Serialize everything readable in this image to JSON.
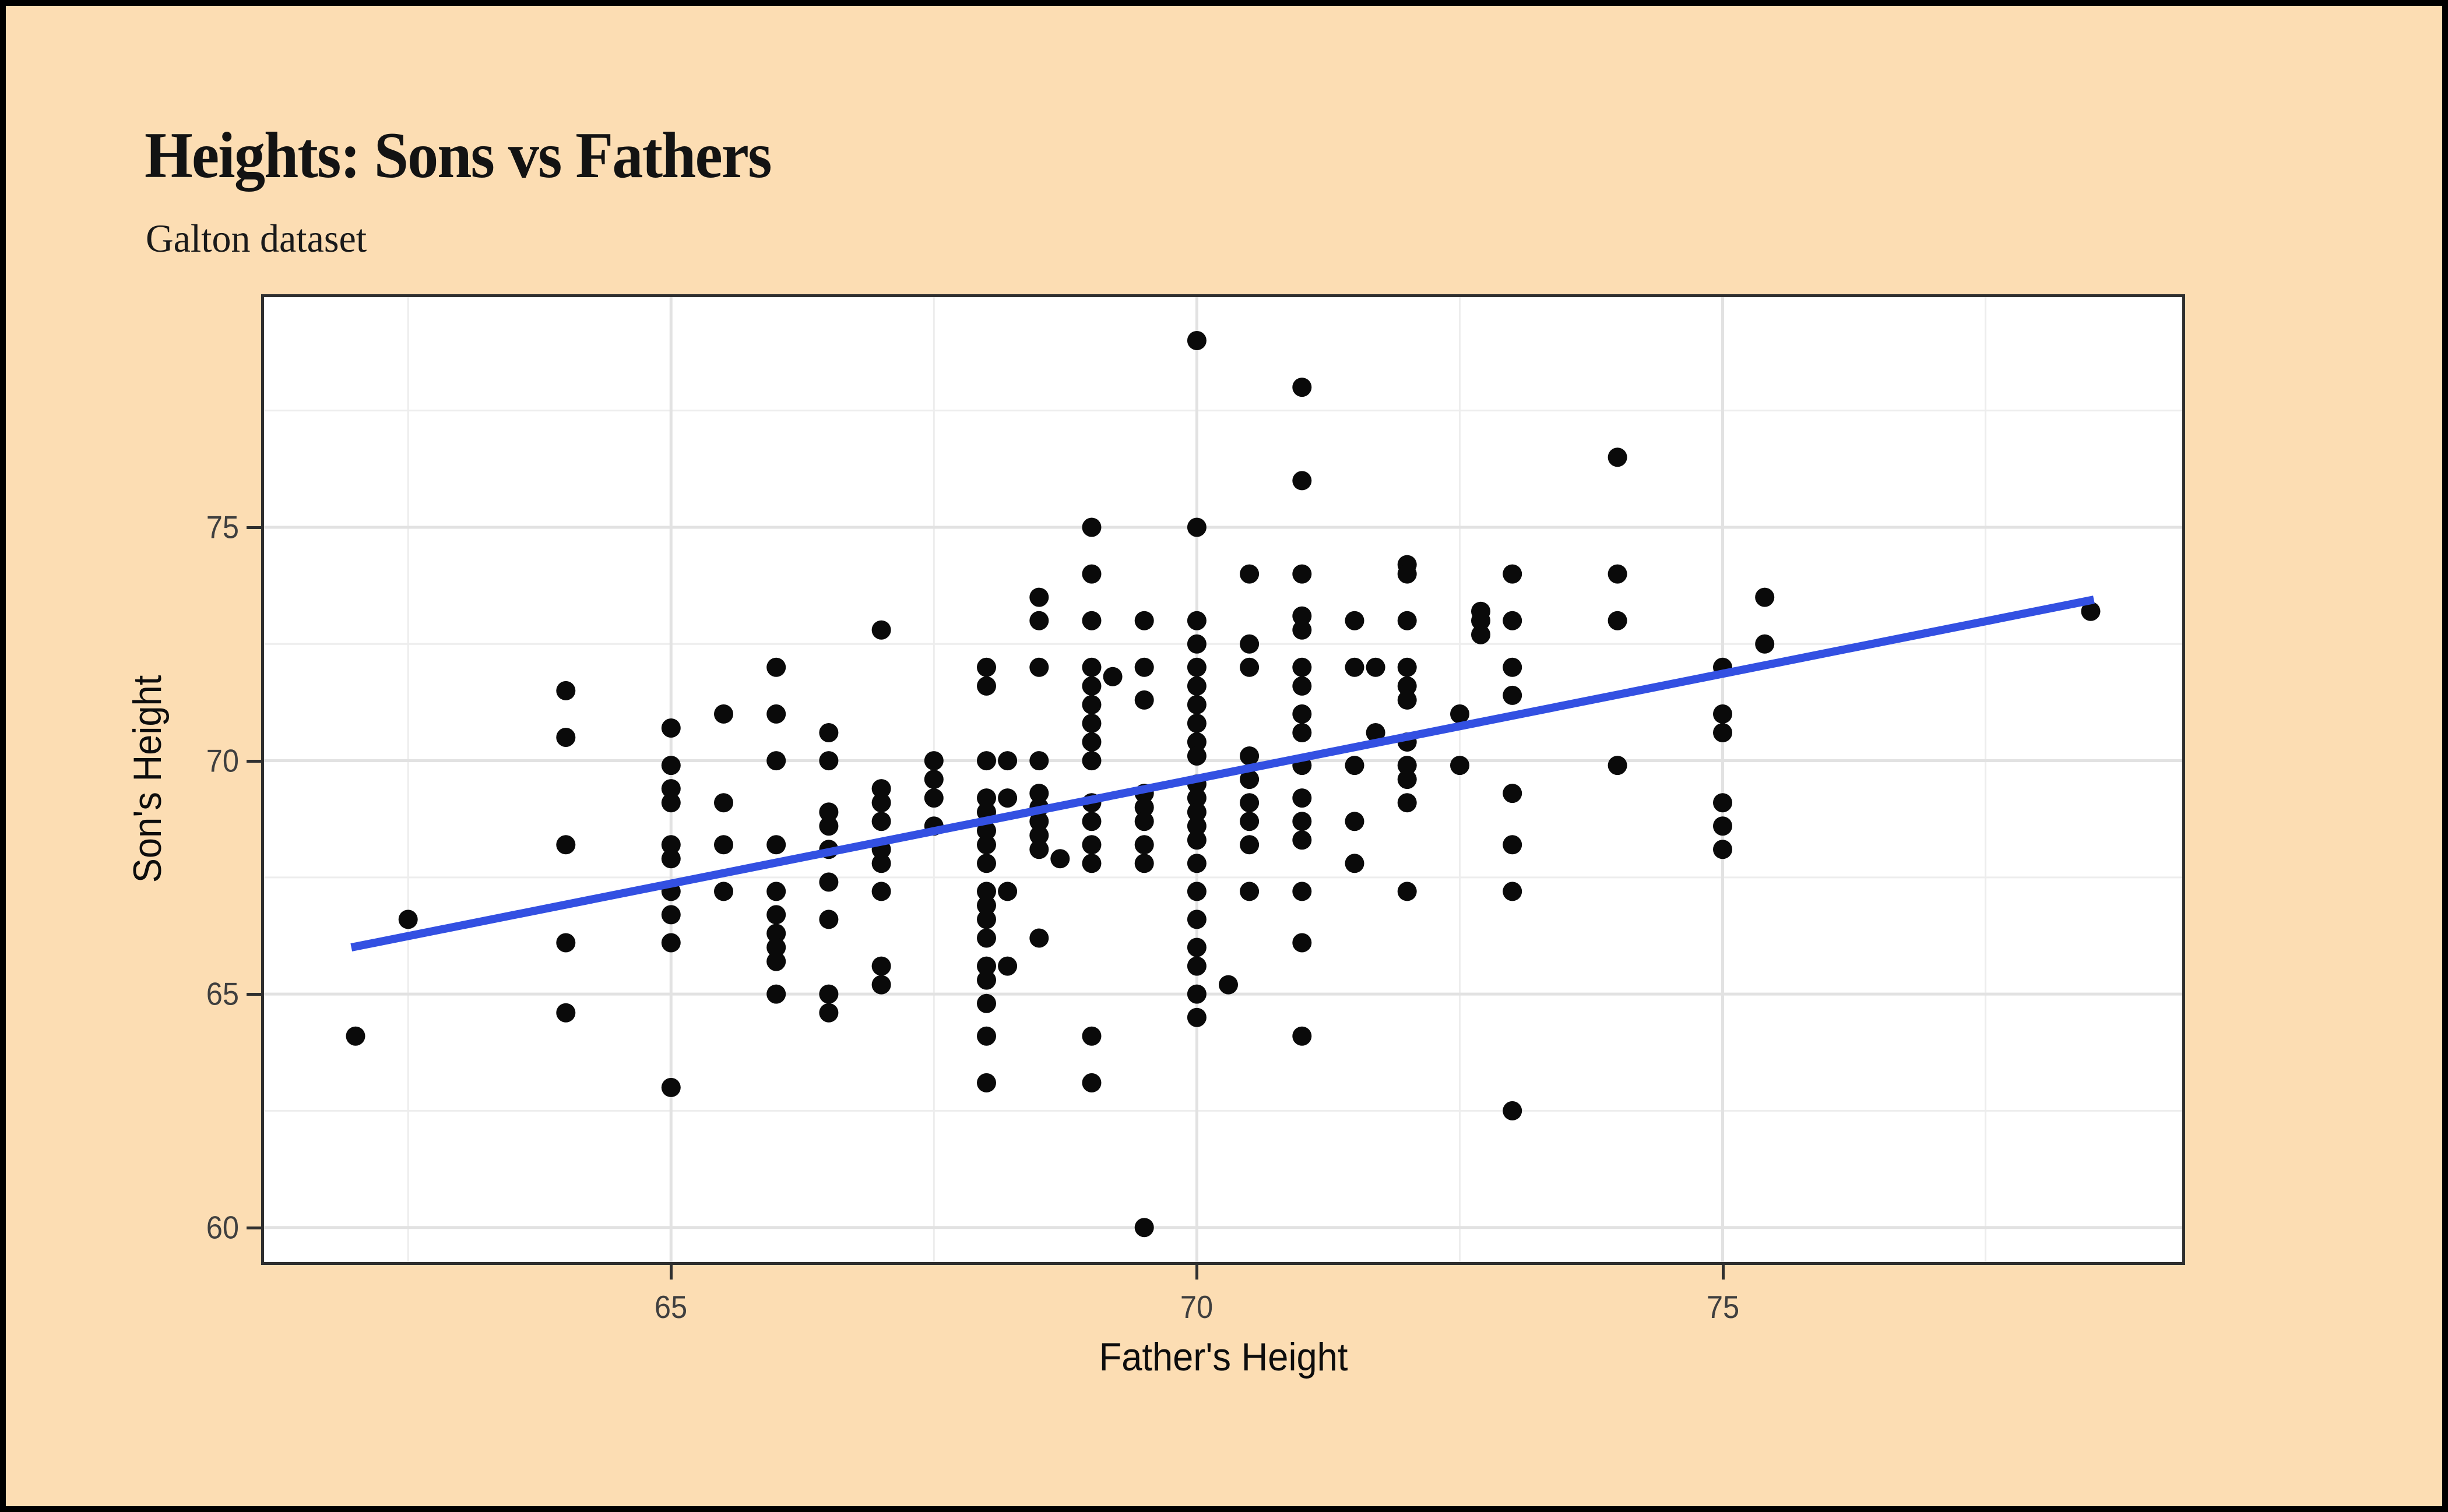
{
  "title": "Heights: Sons vs Fathers",
  "subtitle": "Galton dataset",
  "colors": {
    "page_background": "#fcddb3",
    "outer_frame": "#000000",
    "panel_background": "#ffffff",
    "panel_border": "#2f2f2f",
    "grid_major": "#e2e2e2",
    "grid_minor": "#ededed",
    "point": "#0a0a0a",
    "trend": "#3350e2",
    "tick_label": "#3f3f3f",
    "axis_title": "#0d0d0d"
  },
  "chart_data": {
    "type": "scatter",
    "title": "Heights: Sons vs Fathers",
    "subtitle": "Galton dataset",
    "xlabel": "Father's Height",
    "ylabel": "Son's Height",
    "x_ticks": [
      65,
      70,
      75
    ],
    "y_ticks": [
      60,
      65,
      70,
      75
    ],
    "x_minor_ticks": [
      62.5,
      67.5,
      72.5,
      77.5
    ],
    "y_minor_ticks": [
      62.5,
      67.5,
      72.5,
      77.5
    ],
    "xlim": [
      61.13,
      79.37
    ],
    "ylim": [
      59.26,
      79.93
    ],
    "grid": true,
    "legend": false,
    "trend_line": {
      "x1": 61.96,
      "y1": 66.0,
      "x2": 78.53,
      "y2": 73.45
    },
    "points": [
      [
        62,
        64.1
      ],
      [
        62.5,
        66.6
      ],
      [
        64,
        71.5
      ],
      [
        64,
        70.5
      ],
      [
        64,
        68.2
      ],
      [
        64,
        66.1
      ],
      [
        64,
        64.6
      ],
      [
        65,
        70.7
      ],
      [
        65,
        69.9
      ],
      [
        65,
        69.4
      ],
      [
        65,
        69.1
      ],
      [
        65,
        68.2
      ],
      [
        65,
        67.9
      ],
      [
        65,
        67.2
      ],
      [
        65,
        66.7
      ],
      [
        65,
        66.1
      ],
      [
        65,
        63
      ],
      [
        65.5,
        71
      ],
      [
        65.5,
        69.1
      ],
      [
        65.5,
        68.2
      ],
      [
        65.5,
        67.2
      ],
      [
        66,
        72
      ],
      [
        66,
        71
      ],
      [
        66,
        70
      ],
      [
        66,
        68.2
      ],
      [
        66,
        67.2
      ],
      [
        66,
        66.7
      ],
      [
        66,
        66.3
      ],
      [
        66,
        66
      ],
      [
        66,
        65.7
      ],
      [
        66,
        65
      ],
      [
        66.5,
        70.6
      ],
      [
        66.5,
        70
      ],
      [
        66.5,
        68.9
      ],
      [
        66.5,
        68.6
      ],
      [
        66.5,
        68.1
      ],
      [
        66.5,
        67.4
      ],
      [
        66.5,
        66.6
      ],
      [
        66.5,
        65
      ],
      [
        66.5,
        64.6
      ],
      [
        67,
        72.8
      ],
      [
        67,
        69.4
      ],
      [
        67,
        69.1
      ],
      [
        67,
        68.7
      ],
      [
        67,
        68.1
      ],
      [
        67,
        67.8
      ],
      [
        67,
        67.2
      ],
      [
        67,
        65.6
      ],
      [
        67,
        65.2
      ],
      [
        67.5,
        70
      ],
      [
        67.5,
        69.6
      ],
      [
        67.5,
        69.2
      ],
      [
        67.5,
        68.6
      ],
      [
        68,
        72
      ],
      [
        68,
        71.6
      ],
      [
        68,
        70
      ],
      [
        68,
        69.2
      ],
      [
        68,
        68.9
      ],
      [
        68,
        68.5
      ],
      [
        68,
        68.2
      ],
      [
        68,
        67.8
      ],
      [
        68,
        67.2
      ],
      [
        68,
        66.9
      ],
      [
        68,
        66.6
      ],
      [
        68,
        66.2
      ],
      [
        68,
        65.6
      ],
      [
        68,
        65.3
      ],
      [
        68,
        64.8
      ],
      [
        68,
        64.1
      ],
      [
        68,
        63.1
      ],
      [
        68.2,
        70
      ],
      [
        68.2,
        69.2
      ],
      [
        68.2,
        67.2
      ],
      [
        68.2,
        65.6
      ],
      [
        68.5,
        73.5
      ],
      [
        68.5,
        73
      ],
      [
        68.5,
        72
      ],
      [
        68.5,
        70
      ],
      [
        68.5,
        69.3
      ],
      [
        68.5,
        69
      ],
      [
        68.5,
        68.7
      ],
      [
        68.5,
        68.4
      ],
      [
        68.5,
        68.1
      ],
      [
        68.5,
        66.2
      ],
      [
        68.7,
        67.9
      ],
      [
        69,
        75
      ],
      [
        69,
        74
      ],
      [
        69,
        73
      ],
      [
        69,
        72
      ],
      [
        69,
        71.6
      ],
      [
        69,
        71.2
      ],
      [
        69,
        70.8
      ],
      [
        69,
        70.4
      ],
      [
        69,
        70
      ],
      [
        69,
        69.1
      ],
      [
        69,
        68.7
      ],
      [
        69,
        68.2
      ],
      [
        69,
        67.8
      ],
      [
        69,
        64.1
      ],
      [
        69,
        63.1
      ],
      [
        69.2,
        71.8
      ],
      [
        69.5,
        73
      ],
      [
        69.5,
        72
      ],
      [
        69.5,
        71.3
      ],
      [
        69.5,
        69.3
      ],
      [
        69.5,
        69
      ],
      [
        69.5,
        68.7
      ],
      [
        69.5,
        68.2
      ],
      [
        69.5,
        67.8
      ],
      [
        69.5,
        60
      ],
      [
        70,
        79
      ],
      [
        70,
        75
      ],
      [
        70,
        73
      ],
      [
        70,
        72.5
      ],
      [
        70,
        72
      ],
      [
        70,
        71.6
      ],
      [
        70,
        71.2
      ],
      [
        70,
        70.8
      ],
      [
        70,
        70.4
      ],
      [
        70,
        70.1
      ],
      [
        70,
        69.5
      ],
      [
        70,
        69.2
      ],
      [
        70,
        68.9
      ],
      [
        70,
        68.6
      ],
      [
        70,
        68.3
      ],
      [
        70,
        67.8
      ],
      [
        70,
        67.2
      ],
      [
        70,
        66.6
      ],
      [
        70,
        66
      ],
      [
        70,
        65.6
      ],
      [
        70,
        65
      ],
      [
        70,
        64.5
      ],
      [
        70.3,
        65.2
      ],
      [
        70.5,
        74
      ],
      [
        70.5,
        72.5
      ],
      [
        70.5,
        72
      ],
      [
        70.5,
        70.1
      ],
      [
        70.5,
        69.6
      ],
      [
        70.5,
        69.1
      ],
      [
        70.5,
        68.7
      ],
      [
        70.5,
        68.2
      ],
      [
        70.5,
        67.2
      ],
      [
        71,
        78
      ],
      [
        71,
        76
      ],
      [
        71,
        74
      ],
      [
        71,
        73.1
      ],
      [
        71,
        72.8
      ],
      [
        71,
        72
      ],
      [
        71,
        71.6
      ],
      [
        71,
        71
      ],
      [
        71,
        70.6
      ],
      [
        71,
        69.9
      ],
      [
        71,
        69.2
      ],
      [
        71,
        68.7
      ],
      [
        71,
        68.3
      ],
      [
        71,
        67.2
      ],
      [
        71,
        66.1
      ],
      [
        71,
        64.1
      ],
      [
        71.5,
        73
      ],
      [
        71.5,
        72
      ],
      [
        71.5,
        69.9
      ],
      [
        71.5,
        68.7
      ],
      [
        71.5,
        67.8
      ],
      [
        71.7,
        72
      ],
      [
        71.7,
        70.6
      ],
      [
        72,
        74.2
      ],
      [
        72,
        74
      ],
      [
        72,
        73
      ],
      [
        72,
        72
      ],
      [
        72,
        71.6
      ],
      [
        72,
        71.3
      ],
      [
        72,
        70.4
      ],
      [
        72,
        69.9
      ],
      [
        72,
        69.6
      ],
      [
        72,
        69.1
      ],
      [
        72,
        67.2
      ],
      [
        72.5,
        71
      ],
      [
        72.5,
        69.9
      ],
      [
        72.7,
        73.2
      ],
      [
        72.7,
        73
      ],
      [
        72.7,
        72.7
      ],
      [
        73,
        74
      ],
      [
        73,
        73
      ],
      [
        73,
        72
      ],
      [
        73,
        71.4
      ],
      [
        73,
        69.3
      ],
      [
        73,
        68.2
      ],
      [
        73,
        67.2
      ],
      [
        73,
        62.5
      ],
      [
        74,
        76.5
      ],
      [
        74,
        74
      ],
      [
        74,
        73
      ],
      [
        74,
        69.9
      ],
      [
        75,
        72
      ],
      [
        75,
        71
      ],
      [
        75,
        70.6
      ],
      [
        75,
        69.1
      ],
      [
        75,
        68.6
      ],
      [
        75,
        68.1
      ],
      [
        75.4,
        73.5
      ],
      [
        75.4,
        72.5
      ],
      [
        78.5,
        73.2
      ]
    ]
  }
}
